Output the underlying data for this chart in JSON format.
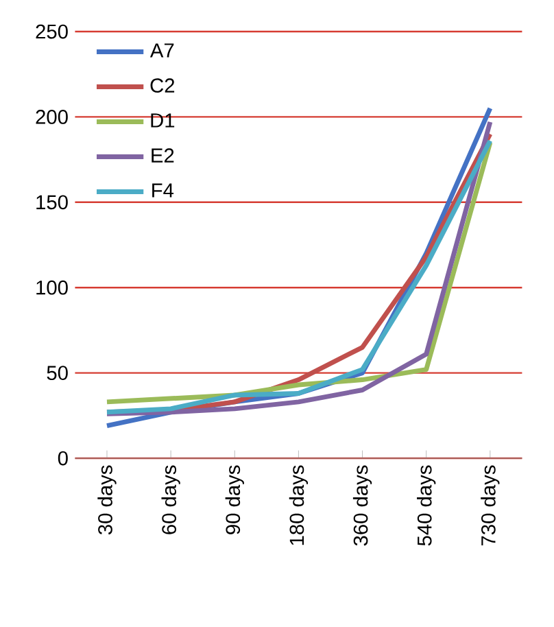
{
  "chart_data": {
    "type": "line",
    "categories": [
      "30 days",
      "60 days",
      "90 days",
      "180 days",
      "360 days",
      "540 days",
      "730 days"
    ],
    "series": [
      {
        "name": "A7",
        "color": "#4472c4",
        "values": [
          19,
          27,
          33,
          38,
          50,
          120,
          205
        ]
      },
      {
        "name": "C2",
        "color": "#c0504d",
        "values": [
          27,
          28,
          33,
          46,
          65,
          118,
          190
        ]
      },
      {
        "name": "D1",
        "color": "#9bbb59",
        "values": [
          33,
          35,
          37,
          43,
          46,
          52,
          185
        ]
      },
      {
        "name": "E2",
        "color": "#8064a2",
        "values": [
          26,
          27,
          29,
          33,
          40,
          61,
          197
        ]
      },
      {
        "name": "F4",
        "color": "#4bacc6",
        "values": [
          27,
          29,
          37,
          38,
          52,
          113,
          186
        ]
      }
    ],
    "ylim": [
      0,
      250
    ],
    "yticks": [
      0,
      50,
      100,
      150,
      200,
      250
    ],
    "grid": "y",
    "legend": "top left"
  }
}
